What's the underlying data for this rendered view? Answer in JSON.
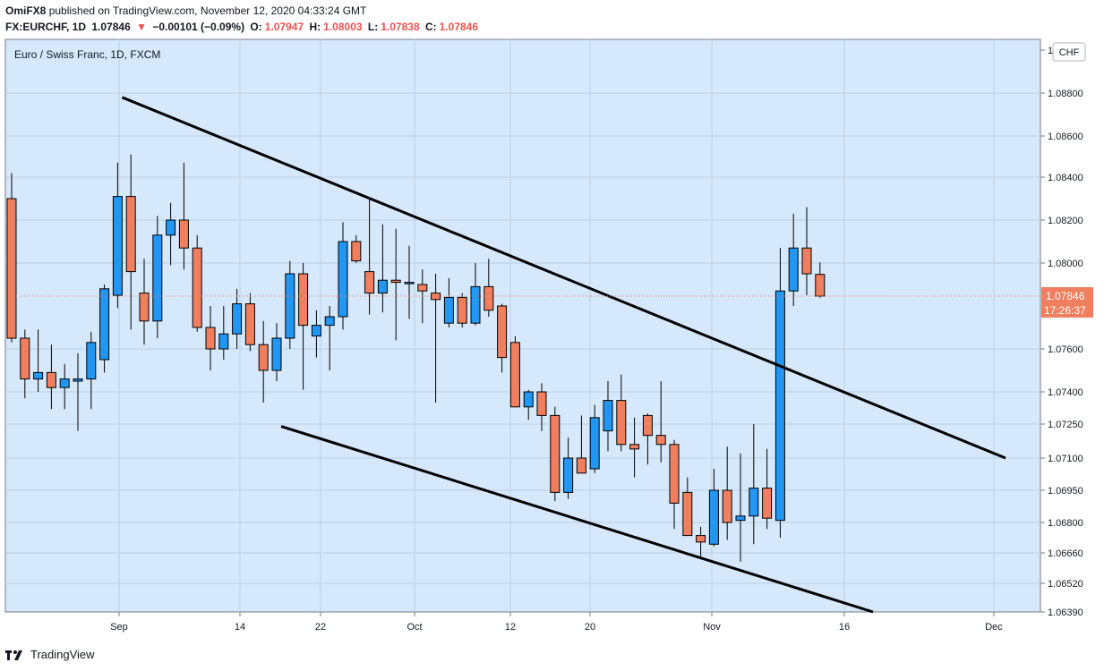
{
  "header": {
    "publisher": "OmiFX8",
    "published_text": "published on TradingView.com, November 12, 2020 04:33:24 GMT",
    "symbol": "FX:EURCHF, 1D",
    "last": "1.07846",
    "change": "−0.00101 (−0.09%)",
    "o_label": "O:",
    "o_value": "1.07947",
    "h_label": "H:",
    "h_value": "1.08003",
    "l_label": "L:",
    "l_value": "1.07838",
    "c_label": "C:",
    "c_value": "1.07846"
  },
  "chart_data": {
    "type": "candlestick",
    "title": "Euro / Swiss Franc, 1D, FXCM",
    "currency": "CHF",
    "last_price_label": "1.07846",
    "countdown_label": "17:26:37",
    "last_price": 1.07846,
    "x_ticks": [
      "Sep",
      "14",
      "22",
      "Oct",
      "12",
      "20",
      "Nov",
      "16",
      "Dec"
    ],
    "y_ticks": [
      "1",
      "1.08800",
      "1.08600",
      "1.08400",
      "1.08200",
      "1.08000",
      "1.07600",
      "1.07400",
      "1.07250",
      "1.07100",
      "1.06950",
      "1.06800",
      "1.06660",
      "1.06520",
      "1.06390"
    ],
    "colors": {
      "up": "#2196f3",
      "down": "#ef7f5f",
      "trendline": "#000000",
      "background": "#d6e8fb",
      "price_label": "#ef7f5f"
    },
    "candles": [
      {
        "o": 1.083,
        "h": 1.0842,
        "l": 1.0763,
        "c": 1.0765
      },
      {
        "o": 1.0765,
        "h": 1.0769,
        "l": 1.0737,
        "c": 1.0746
      },
      {
        "o": 1.0746,
        "h": 1.0769,
        "l": 1.074,
        "c": 1.0749
      },
      {
        "o": 1.0749,
        "h": 1.0762,
        "l": 1.0732,
        "c": 1.0742
      },
      {
        "o": 1.0742,
        "h": 1.0753,
        "l": 1.0732,
        "c": 1.0746
      },
      {
        "o": 1.0745,
        "h": 1.0758,
        "l": 1.0722,
        "c": 1.0746
      },
      {
        "o": 1.0746,
        "h": 1.0768,
        "l": 1.0732,
        "c": 1.0763
      },
      {
        "o": 1.0755,
        "h": 1.079,
        "l": 1.0749,
        "c": 1.0788
      },
      {
        "o": 1.0785,
        "h": 1.0847,
        "l": 1.0779,
        "c": 1.0831
      },
      {
        "o": 1.0831,
        "h": 1.0851,
        "l": 1.0769,
        "c": 1.0796
      },
      {
        "o": 1.0786,
        "h": 1.0802,
        "l": 1.0762,
        "c": 1.0773
      },
      {
        "o": 1.0773,
        "h": 1.0822,
        "l": 1.0765,
        "c": 1.0813
      },
      {
        "o": 1.0813,
        "h": 1.0828,
        "l": 1.0799,
        "c": 1.082
      },
      {
        "o": 1.082,
        "h": 1.0847,
        "l": 1.0797,
        "c": 1.0807
      },
      {
        "o": 1.0807,
        "h": 1.0813,
        "l": 1.0768,
        "c": 1.077
      },
      {
        "o": 1.077,
        "h": 1.078,
        "l": 1.075,
        "c": 1.076
      },
      {
        "o": 1.076,
        "h": 1.078,
        "l": 1.0755,
        "c": 1.0767
      },
      {
        "o": 1.0767,
        "h": 1.0788,
        "l": 1.076,
        "c": 1.0781
      },
      {
        "o": 1.0781,
        "h": 1.0786,
        "l": 1.0759,
        "c": 1.0762
      },
      {
        "o": 1.0762,
        "h": 1.0773,
        "l": 1.0735,
        "c": 1.075
      },
      {
        "o": 1.075,
        "h": 1.0772,
        "l": 1.0745,
        "c": 1.0765
      },
      {
        "o": 1.0765,
        "h": 1.0801,
        "l": 1.076,
        "c": 1.0795
      },
      {
        "o": 1.0795,
        "h": 1.08,
        "l": 1.0741,
        "c": 1.0771
      },
      {
        "o": 1.0766,
        "h": 1.0778,
        "l": 1.0756,
        "c": 1.0771
      },
      {
        "o": 1.0771,
        "h": 1.078,
        "l": 1.075,
        "c": 1.0775
      },
      {
        "o": 1.0775,
        "h": 1.0819,
        "l": 1.0769,
        "c": 1.081
      },
      {
        "o": 1.081,
        "h": 1.0813,
        "l": 1.08,
        "c": 1.0801
      },
      {
        "o": 1.0796,
        "h": 1.083,
        "l": 1.0776,
        "c": 1.0786
      },
      {
        "o": 1.0786,
        "h": 1.0818,
        "l": 1.0777,
        "c": 1.0792
      },
      {
        "o": 1.0792,
        "h": 1.0816,
        "l": 1.0764,
        "c": 1.0791
      },
      {
        "o": 1.0791,
        "h": 1.0808,
        "l": 1.0774,
        "c": 1.0791
      },
      {
        "o": 1.079,
        "h": 1.0797,
        "l": 1.0772,
        "c": 1.0787
      },
      {
        "o": 1.0786,
        "h": 1.0795,
        "l": 1.0735,
        "c": 1.0783
      },
      {
        "o": 1.0772,
        "h": 1.0793,
        "l": 1.077,
        "c": 1.0784
      },
      {
        "o": 1.0784,
        "h": 1.0786,
        "l": 1.077,
        "c": 1.0772
      },
      {
        "o": 1.0772,
        "h": 1.08,
        "l": 1.0771,
        "c": 1.0789
      },
      {
        "o": 1.0789,
        "h": 1.0802,
        "l": 1.0775,
        "c": 1.0778
      },
      {
        "o": 1.078,
        "h": 1.0781,
        "l": 1.0749,
        "c": 1.0756
      },
      {
        "o": 1.0763,
        "h": 1.0766,
        "l": 1.0733,
        "c": 1.0733
      },
      {
        "o": 1.0733,
        "h": 1.0741,
        "l": 1.0727,
        "c": 1.074
      },
      {
        "o": 1.074,
        "h": 1.0744,
        "l": 1.0722,
        "c": 1.0729
      },
      {
        "o": 1.0729,
        "h": 1.0733,
        "l": 1.069,
        "c": 1.0694
      },
      {
        "o": 1.0694,
        "h": 1.0719,
        "l": 1.0691,
        "c": 1.071
      },
      {
        "o": 1.071,
        "h": 1.0729,
        "l": 1.0703,
        "c": 1.0703
      },
      {
        "o": 1.0705,
        "h": 1.0734,
        "l": 1.0703,
        "c": 1.0728
      },
      {
        "o": 1.0722,
        "h": 1.0745,
        "l": 1.0713,
        "c": 1.0736
      },
      {
        "o": 1.0736,
        "h": 1.0748,
        "l": 1.0713,
        "c": 1.0716
      },
      {
        "o": 1.0716,
        "h": 1.0728,
        "l": 1.0701,
        "c": 1.0714
      },
      {
        "o": 1.0729,
        "h": 1.073,
        "l": 1.0707,
        "c": 1.072
      },
      {
        "o": 1.072,
        "h": 1.0745,
        "l": 1.0708,
        "c": 1.0716
      },
      {
        "o": 1.0716,
        "h": 1.0718,
        "l": 1.0677,
        "c": 1.0689
      },
      {
        "o": 1.0694,
        "h": 1.0701,
        "l": 1.0675,
        "c": 1.0674
      },
      {
        "o": 1.0674,
        "h": 1.0678,
        "l": 1.0664,
        "c": 1.0671
      },
      {
        "o": 1.067,
        "h": 1.0705,
        "l": 1.0669,
        "c": 1.0695
      },
      {
        "o": 1.0695,
        "h": 1.0715,
        "l": 1.0672,
        "c": 1.068
      },
      {
        "o": 1.0681,
        "h": 1.0712,
        "l": 1.0662,
        "c": 1.0683
      },
      {
        "o": 1.0683,
        "h": 1.0725,
        "l": 1.067,
        "c": 1.0696
      },
      {
        "o": 1.0696,
        "h": 1.0714,
        "l": 1.0677,
        "c": 1.0682
      },
      {
        "o": 1.0681,
        "h": 1.0807,
        "l": 1.0673,
        "c": 1.0787
      },
      {
        "o": 1.0787,
        "h": 1.0823,
        "l": 1.078,
        "c": 1.0807
      },
      {
        "o": 1.0807,
        "h": 1.0826,
        "l": 1.0785,
        "c": 1.0795
      },
      {
        "o": 1.07947,
        "h": 1.08003,
        "l": 1.07838,
        "c": 1.07846
      }
    ],
    "trendlines": [
      {
        "from": {
          "bar": 8,
          "price": 1.0878
        },
        "to": {
          "bar": 75,
          "price": 1.071
        }
      },
      {
        "from": {
          "bar": 20,
          "price": 1.0724
        },
        "to": {
          "bar": 65,
          "price": 1.0639
        }
      }
    ]
  },
  "footer": {
    "brand": "TradingView"
  }
}
